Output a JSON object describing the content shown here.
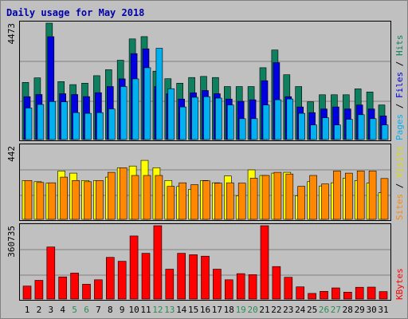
{
  "title": "Daily usage for May 2018",
  "colors": {
    "background": "#c0c0c0",
    "plot_bg": "#c0c0c0",
    "title": "#0000aa",
    "hits": "#0e8060",
    "files": "#0000e0",
    "pages": "#00b0f0",
    "visits": "#ffff00",
    "sites": "#ff8800",
    "kbytes": "#ff0000",
    "weekend_label": "#2e8b57",
    "weekday_label": "#000000",
    "grid": "#808080"
  },
  "chart_data": [
    {
      "type": "bar",
      "title": "Daily usage for May 2018",
      "panel": "hits_files_pages",
      "ymax_label": "4473",
      "legend": [
        "Pages",
        "Files",
        "Hits"
      ],
      "categories": [
        "1",
        "2",
        "3",
        "4",
        "5",
        "6",
        "7",
        "8",
        "9",
        "10",
        "11",
        "12",
        "13",
        "14",
        "15",
        "16",
        "17",
        "18",
        "19",
        "20",
        "21",
        "22",
        "23",
        "24",
        "25",
        "26",
        "27",
        "28",
        "29",
        "30",
        "31"
      ],
      "weekend_days": [
        "5",
        "6",
        "12",
        "13",
        "19",
        "20",
        "26",
        "27"
      ],
      "ylim": [
        0,
        4473
      ],
      "series": [
        {
          "name": "Hits",
          "values": [
            2198,
            2371,
            4473,
            2227,
            2112,
            2166,
            2454,
            2683,
            3049,
            3866,
            3955,
            2630,
            2339,
            2166,
            2383,
            2426,
            2383,
            2036,
            2036,
            2036,
            2759,
            3440,
            2491,
            2036,
            1450,
            1722,
            1722,
            1722,
            1948,
            1830,
            1331
          ]
        },
        {
          "name": "Files",
          "values": [
            1647,
            1730,
            3952,
            1761,
            1730,
            1650,
            1802,
            2036,
            2330,
            3302,
            3486,
            2036,
            1761,
            1556,
            1794,
            1885,
            1761,
            1556,
            1472,
            1530,
            2262,
            2955,
            1647,
            1254,
            1034,
            1175,
            1254,
            1175,
            1331,
            1175,
            911
          ]
        },
        {
          "name": "Pages",
          "values": [
            1214,
            1347,
            1461,
            1450,
            1034,
            1007,
            1034,
            1175,
            2036,
            2330,
            2759,
            3509,
            1956,
            1254,
            1624,
            1647,
            1593,
            1331,
            804,
            804,
            1331,
            1530,
            1559,
            1007,
            560,
            838,
            560,
            777,
            955,
            804,
            560
          ]
        }
      ]
    },
    {
      "type": "bar",
      "panel": "sites_visits",
      "ymax_label": "442",
      "legend": [
        "Sites",
        "Visits"
      ],
      "categories": [
        "1",
        "2",
        "3",
        "4",
        "5",
        "6",
        "7",
        "8",
        "9",
        "10",
        "11",
        "12",
        "13",
        "14",
        "15",
        "16",
        "17",
        "18",
        "19",
        "20",
        "21",
        "22",
        "23",
        "24",
        "25",
        "26",
        "27",
        "28",
        "29",
        "30",
        "31"
      ],
      "ylim": [
        0,
        442
      ],
      "series": [
        {
          "name": "Visits",
          "values": [
            234,
            227,
            218,
            291,
            278,
            234,
            234,
            254,
            311,
            321,
            355,
            311,
            234,
            198,
            181,
            234,
            220,
            261,
            142,
            298,
            264,
            278,
            283,
            142,
            227,
            201,
            220,
            248,
            234,
            218,
            160
          ]
        },
        {
          "name": "Sites",
          "values": [
            234,
            222,
            220,
            254,
            234,
            227,
            234,
            283,
            311,
            264,
            264,
            264,
            199,
            220,
            209,
            232,
            218,
            220,
            218,
            248,
            264,
            283,
            273,
            199,
            264,
            213,
            291,
            278,
            291,
            291,
            246
          ]
        }
      ]
    },
    {
      "type": "bar",
      "panel": "kbytes",
      "ymax_label": "360735",
      "legend": [
        "KBytes"
      ],
      "categories": [
        "1",
        "2",
        "3",
        "4",
        "5",
        "6",
        "7",
        "8",
        "9",
        "10",
        "11",
        "12",
        "13",
        "14",
        "15",
        "16",
        "17",
        "18",
        "19",
        "20",
        "21",
        "22",
        "23",
        "24",
        "25",
        "26",
        "27",
        "28",
        "29",
        "30",
        "31"
      ],
      "ylim": [
        0,
        360735
      ],
      "series": [
        {
          "name": "KBytes",
          "values": [
            64000,
            92000,
            256000,
            109000,
            128000,
            73000,
            95000,
            205000,
            186000,
            310000,
            225000,
            360735,
            147000,
            225000,
            218000,
            211000,
            147000,
            95000,
            125000,
            120000,
            360735,
            160000,
            107000,
            60000,
            28000,
            38000,
            55000,
            34000,
            58000,
            59000,
            37000
          ]
        }
      ]
    }
  ]
}
